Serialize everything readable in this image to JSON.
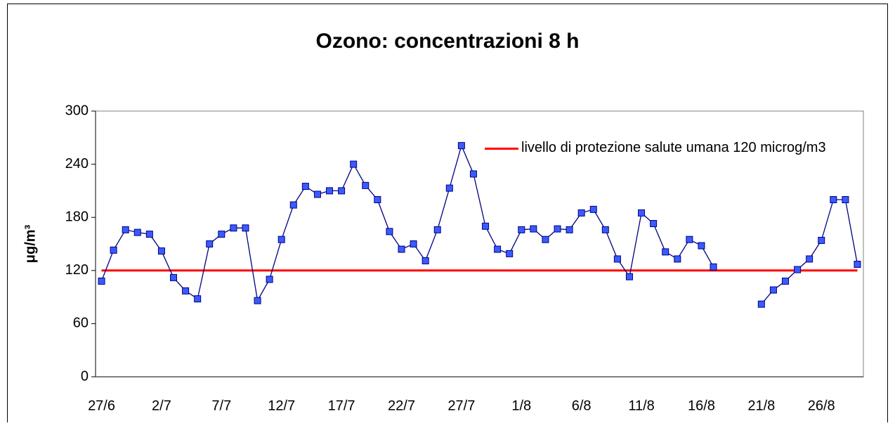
{
  "chart_data": {
    "type": "line",
    "title": "Ozono: concentrazioni 8 h",
    "y_label": "μg/m³",
    "categories": [
      "27/6",
      null,
      null,
      null,
      null,
      "2/7",
      null,
      null,
      null,
      null,
      "7/7",
      null,
      null,
      null,
      null,
      "12/7",
      null,
      null,
      null,
      null,
      "17/7",
      null,
      null,
      null,
      null,
      "22/7",
      null,
      null,
      null,
      null,
      "27/7",
      null,
      null,
      null,
      null,
      "1/8",
      null,
      null,
      null,
      null,
      "6/8",
      null,
      null,
      null,
      null,
      "11/8",
      null,
      null,
      null,
      null,
      "16/8",
      null,
      null,
      null,
      null,
      "21/8",
      null,
      null,
      null,
      null,
      "26/8",
      null,
      null,
      null
    ],
    "series": [
      {
        "name": null,
        "color": "#000080",
        "marker_color": "#3b5bff",
        "values": [
          108,
          143,
          166,
          163,
          161,
          142,
          112,
          97,
          88,
          150,
          161,
          168,
          168,
          86,
          110,
          155,
          194,
          215,
          206,
          210,
          210,
          240,
          216,
          200,
          164,
          144,
          150,
          131,
          166,
          213,
          261,
          229,
          170,
          144,
          139,
          166,
          167,
          155,
          167,
          166,
          185,
          189,
          166,
          133,
          113,
          185,
          173,
          141,
          133,
          155,
          148,
          124,
          null,
          null,
          null,
          82,
          98,
          108,
          121,
          133,
          154,
          200,
          200,
          127
        ]
      },
      {
        "name": "livello di protezione salute umana 120 microg/m3",
        "color": "#ff0000",
        "values": [
          120,
          120,
          120,
          120,
          120,
          120,
          120,
          120,
          120,
          120,
          120,
          120,
          120,
          120,
          120,
          120,
          120,
          120,
          120,
          120,
          120,
          120,
          120,
          120,
          120,
          120,
          120,
          120,
          120,
          120,
          120,
          120,
          120,
          120,
          120,
          120,
          120,
          120,
          120,
          120,
          120,
          120,
          120,
          120,
          120,
          120,
          120,
          120,
          120,
          120,
          120,
          120,
          120,
          120,
          120,
          120,
          120,
          120,
          120,
          120,
          120,
          120,
          120,
          120
        ]
      }
    ],
    "ylim": [
      0,
      300
    ],
    "yticks": [
      0,
      60,
      120,
      180,
      240,
      300
    ],
    "grid": false,
    "legend": "top-right"
  }
}
